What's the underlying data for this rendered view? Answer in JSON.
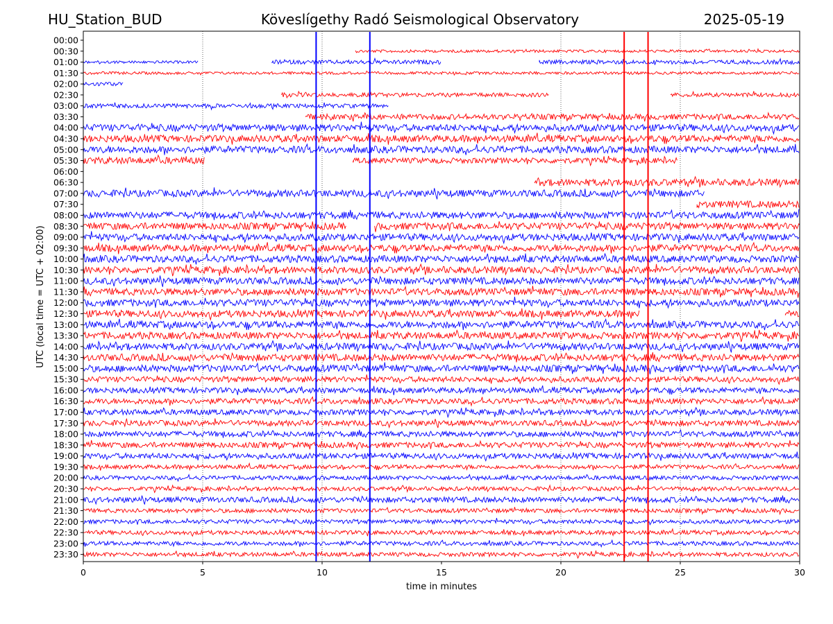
{
  "header": {
    "station": "HU_Station_BUD",
    "observatory": "Köveslígethy Radó Seismological Observatory",
    "date": "2025-05-19"
  },
  "chart_data": {
    "type": "line",
    "subtype": "helicorder",
    "title": "Köveslígethy Radó Seismological Observatory",
    "xlabel": "time in minutes",
    "ylabel": "UTC (local time = UTC + 02:00)",
    "xlim": [
      0,
      30
    ],
    "xticks": [
      0,
      5,
      10,
      15,
      20,
      25,
      30
    ],
    "grid": "vertical dotted lines at 5, 10, 20, 25 minutes",
    "colors": {
      "even_rows": "#0000ff",
      "odd_rows": "#ff0000"
    },
    "rows": [
      {
        "label": "00:00",
        "color": "#0000ff",
        "segments": []
      },
      {
        "label": "00:30",
        "color": "#ff0000",
        "segments": [
          [
            11.4,
            30,
            2
          ]
        ]
      },
      {
        "label": "01:00",
        "color": "#0000ff",
        "segments": [
          [
            0,
            4.8,
            2
          ],
          [
            7.9,
            15,
            3
          ],
          [
            19.1,
            30,
            3
          ]
        ]
      },
      {
        "label": "01:30",
        "color": "#ff0000",
        "segments": [
          [
            0,
            30,
            2
          ]
        ]
      },
      {
        "label": "02:00",
        "color": "#0000ff",
        "segments": [
          [
            0,
            1.7,
            3
          ]
        ]
      },
      {
        "label": "02:30",
        "color": "#ff0000",
        "segments": [
          [
            8.3,
            19.5,
            3
          ],
          [
            24.6,
            30,
            3
          ]
        ]
      },
      {
        "label": "03:00",
        "color": "#0000ff",
        "segments": [
          [
            0,
            12.8,
            3
          ]
        ]
      },
      {
        "label": "03:30",
        "color": "#ff0000",
        "segments": [
          [
            9.3,
            30,
            4
          ]
        ]
      },
      {
        "label": "04:00",
        "color": "#0000ff",
        "segments": [
          [
            0,
            30,
            5
          ]
        ]
      },
      {
        "label": "04:30",
        "color": "#ff0000",
        "segments": [
          [
            0,
            30,
            5
          ]
        ]
      },
      {
        "label": "05:00",
        "color": "#0000ff",
        "segments": [
          [
            0,
            30,
            5
          ]
        ]
      },
      {
        "label": "05:30",
        "color": "#ff0000",
        "segments": [
          [
            0,
            5.1,
            5
          ],
          [
            11.3,
            24.9,
            4
          ]
        ]
      },
      {
        "label": "06:00",
        "color": "#0000ff",
        "segments": []
      },
      {
        "label": "06:30",
        "color": "#ff0000",
        "segments": [
          [
            18.9,
            30,
            5
          ]
        ]
      },
      {
        "label": "07:00",
        "color": "#0000ff",
        "segments": [
          [
            0,
            26,
            5
          ]
        ]
      },
      {
        "label": "07:30",
        "color": "#ff0000",
        "segments": [
          [
            25.7,
            30,
            5
          ]
        ]
      },
      {
        "label": "08:00",
        "color": "#0000ff",
        "segments": [
          [
            0,
            30,
            5
          ]
        ]
      },
      {
        "label": "08:30",
        "color": "#ff0000",
        "segments": [
          [
            0,
            11,
            5
          ],
          [
            12.2,
            30,
            5
          ]
        ]
      },
      {
        "label": "09:00",
        "color": "#0000ff",
        "segments": [
          [
            0,
            30,
            5
          ]
        ]
      },
      {
        "label": "09:30",
        "color": "#ff0000",
        "segments": [
          [
            0,
            30,
            5
          ]
        ]
      },
      {
        "label": "10:00",
        "color": "#0000ff",
        "segments": [
          [
            0,
            30,
            5
          ]
        ]
      },
      {
        "label": "10:30",
        "color": "#ff0000",
        "segments": [
          [
            0,
            30,
            5
          ]
        ]
      },
      {
        "label": "11:00",
        "color": "#0000ff",
        "segments": [
          [
            0,
            30,
            5
          ]
        ]
      },
      {
        "label": "11:30",
        "color": "#ff0000",
        "segments": [
          [
            0,
            30,
            5
          ]
        ]
      },
      {
        "label": "12:00",
        "color": "#0000ff",
        "segments": [
          [
            0,
            30,
            5
          ]
        ]
      },
      {
        "label": "12:30",
        "color": "#ff0000",
        "segments": [
          [
            0,
            23.3,
            5
          ],
          [
            29.4,
            30,
            5
          ]
        ]
      },
      {
        "label": "13:00",
        "color": "#0000ff",
        "segments": [
          [
            0,
            30,
            5
          ]
        ]
      },
      {
        "label": "13:30",
        "color": "#ff0000",
        "segments": [
          [
            0,
            30,
            5
          ]
        ]
      },
      {
        "label": "14:00",
        "color": "#0000ff",
        "segments": [
          [
            0,
            30,
            5
          ]
        ]
      },
      {
        "label": "14:30",
        "color": "#ff0000",
        "segments": [
          [
            0,
            30,
            5
          ]
        ]
      },
      {
        "label": "15:00",
        "color": "#0000ff",
        "segments": [
          [
            0,
            30,
            5
          ]
        ]
      },
      {
        "label": "15:30",
        "color": "#ff0000",
        "segments": [
          [
            0,
            30,
            4
          ]
        ]
      },
      {
        "label": "16:00",
        "color": "#0000ff",
        "segments": [
          [
            0,
            30,
            4
          ]
        ]
      },
      {
        "label": "16:30",
        "color": "#ff0000",
        "segments": [
          [
            0,
            30,
            4
          ]
        ]
      },
      {
        "label": "17:00",
        "color": "#0000ff",
        "segments": [
          [
            0,
            30,
            4
          ]
        ]
      },
      {
        "label": "17:30",
        "color": "#ff0000",
        "segments": [
          [
            0,
            30,
            4
          ]
        ]
      },
      {
        "label": "18:00",
        "color": "#0000ff",
        "segments": [
          [
            0,
            30,
            4
          ]
        ]
      },
      {
        "label": "18:30",
        "color": "#ff0000",
        "segments": [
          [
            0,
            30,
            4
          ]
        ]
      },
      {
        "label": "19:00",
        "color": "#0000ff",
        "segments": [
          [
            0,
            30,
            4
          ]
        ]
      },
      {
        "label": "19:30",
        "color": "#ff0000",
        "segments": [
          [
            0,
            30,
            3
          ]
        ]
      },
      {
        "label": "20:00",
        "color": "#0000ff",
        "segments": [
          [
            0,
            30,
            3
          ]
        ]
      },
      {
        "label": "20:30",
        "color": "#ff0000",
        "segments": [
          [
            0,
            30,
            3
          ]
        ]
      },
      {
        "label": "21:00",
        "color": "#0000ff",
        "segments": [
          [
            0,
            30,
            4
          ]
        ]
      },
      {
        "label": "21:30",
        "color": "#ff0000",
        "segments": [
          [
            0,
            30,
            3
          ]
        ]
      },
      {
        "label": "22:00",
        "color": "#0000ff",
        "segments": [
          [
            0,
            30,
            3
          ]
        ]
      },
      {
        "label": "22:30",
        "color": "#ff0000",
        "segments": [
          [
            0,
            30,
            3
          ]
        ]
      },
      {
        "label": "23:00",
        "color": "#0000ff",
        "segments": [
          [
            0,
            30,
            3
          ]
        ]
      },
      {
        "label": "23:30",
        "color": "#ff0000",
        "segments": [
          [
            0,
            30,
            3
          ]
        ]
      }
    ],
    "events": [
      {
        "minute": 9.75,
        "color": "#0000ff",
        "from_row": 0,
        "to_row": 47
      },
      {
        "minute": 12.0,
        "color": "#0000ff",
        "from_row": 0,
        "to_row": 47
      },
      {
        "minute": 22.65,
        "color": "#ff0000",
        "from_row": 0,
        "to_row": 47
      },
      {
        "minute": 23.65,
        "color": "#ff0000",
        "from_row": 0,
        "to_row": 47
      }
    ]
  }
}
